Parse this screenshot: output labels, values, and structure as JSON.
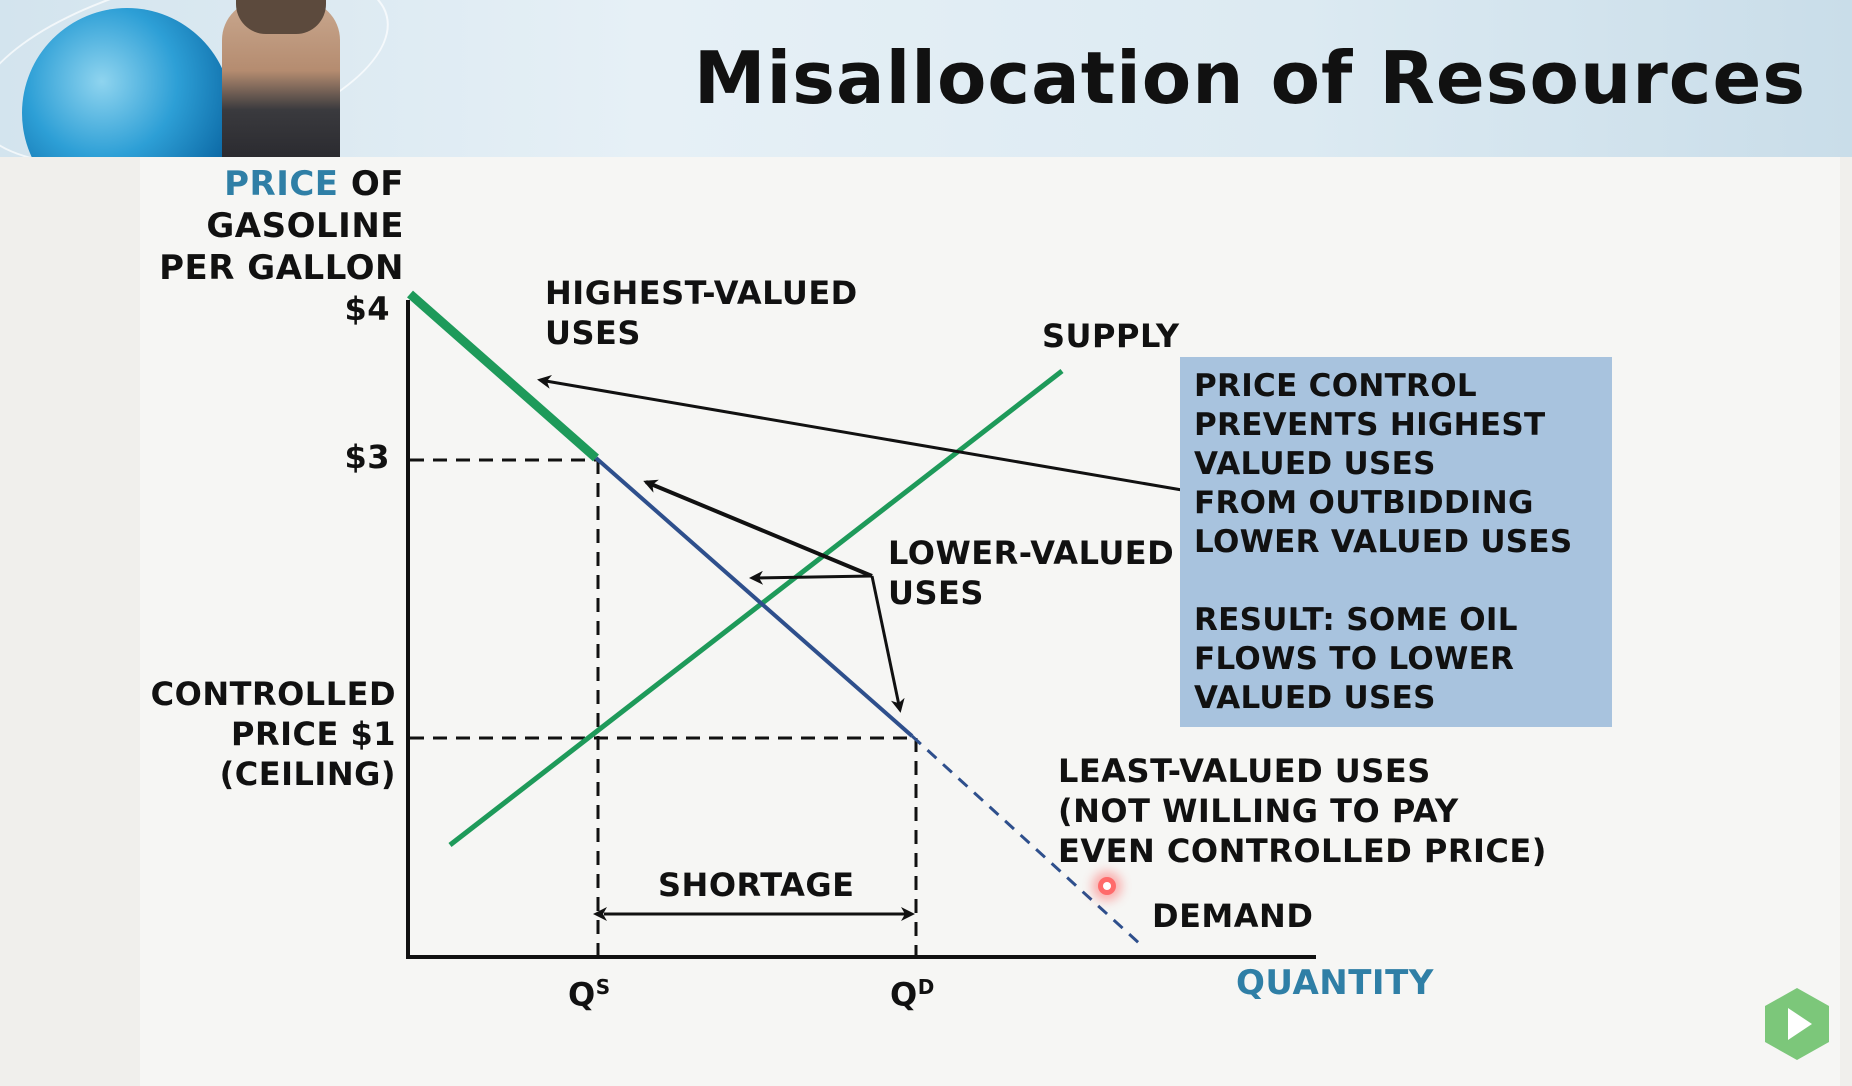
{
  "slide": {
    "title": "Misallocation of Resources"
  },
  "chart": {
    "y_axis_title_lines": [
      {
        "accent": "PRICE",
        "rest": " OF"
      },
      {
        "accent": "",
        "rest": "GASOLINE"
      },
      {
        "accent": "",
        "rest": "PER GALLON"
      }
    ],
    "x_axis_title": "QUANTITY",
    "price_ticks": {
      "p4": "$4",
      "p3": "$3"
    },
    "controlled_price_lines": [
      "CONTROLLED",
      "PRICE $1",
      "(CEILING)"
    ],
    "quantity_ticks": {
      "qs_main": "Q",
      "qs_sup": "S",
      "qd_main": "Q",
      "qd_sup": "D"
    },
    "highest_valued_lines": [
      "HIGHEST-VALUED",
      "USES"
    ],
    "supply_label": "SUPPLY",
    "lower_valued_lines": [
      "LOWER-VALUED",
      "USES"
    ],
    "least_valued_lines": [
      "LEAST-VALUED USES",
      "(NOT WILLING TO PAY",
      "EVEN CONTROLLED PRICE)"
    ],
    "demand_label": "DEMAND",
    "shortage_label": "SHORTAGE",
    "colors": {
      "supply": "#1e9a5a",
      "demand": "#2e4f8c",
      "highest_segment": "#1e9a5a",
      "accent_text": "#2f7fa6",
      "info_box": "#a8c3de"
    }
  },
  "info_box": {
    "lines_a": [
      "PRICE CONTROL",
      "PREVENTS HIGHEST",
      "VALUED USES",
      "FROM OUTBIDDING",
      "LOWER VALUED USES"
    ],
    "lines_b": [
      "RESULT: SOME OIL",
      "FLOWS TO LOWER",
      "VALUED USES"
    ]
  },
  "controls": {
    "play_icon": "play-icon"
  }
}
